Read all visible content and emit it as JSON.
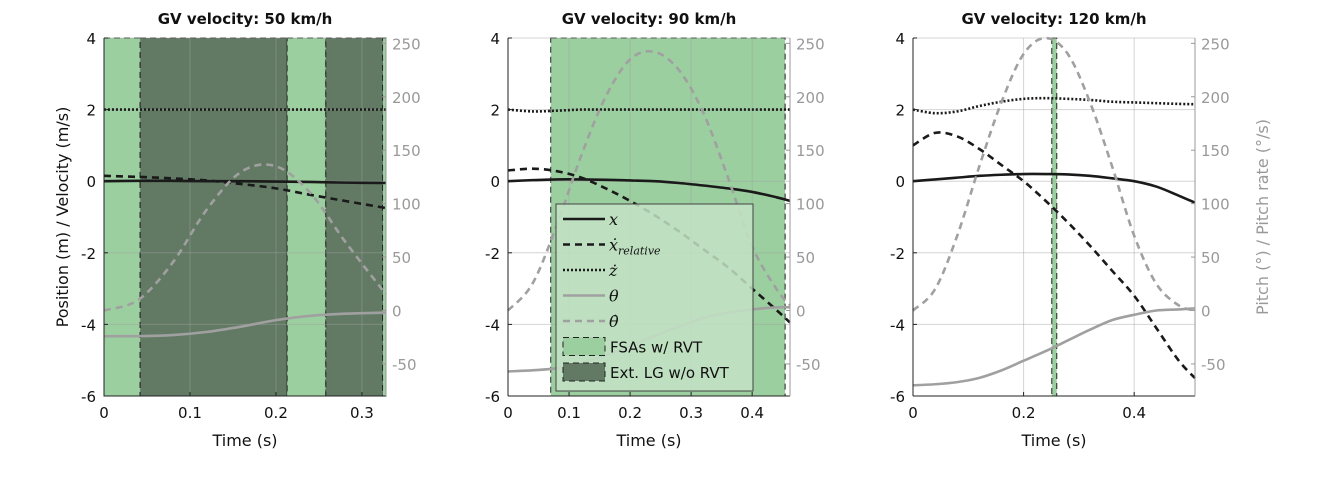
{
  "colors": {
    "fsa": "#9ccf9f",
    "extlg": "#627a64",
    "legend_bg": "#c4e2c5",
    "black": "#1a1a1a",
    "gray": "#a0a0a0",
    "grid": "#d8d8d8"
  },
  "legend": {
    "items": [
      {
        "label": "x",
        "sub": "",
        "style": "solid",
        "color": "black"
      },
      {
        "label": "ẋ",
        "sub": "relative",
        "style": "dash",
        "color": "black"
      },
      {
        "label": "ż",
        "sub": "",
        "style": "dot",
        "color": "black"
      },
      {
        "label": "θ",
        "sub": "",
        "style": "solid",
        "color": "gray"
      },
      {
        "label": "θ̇",
        "sub": "",
        "style": "dash",
        "color": "gray"
      },
      {
        "label": "FSAs w/ RVT",
        "type": "patch",
        "color": "fsa"
      },
      {
        "label": "Ext. LG w/o RVT",
        "type": "patch",
        "color": "extlg"
      }
    ]
  },
  "chart_data": [
    {
      "type": "line",
      "title": "GV velocity: 50 km/h",
      "xlabel": "Time (s)",
      "ylabel": "Position (m) / Velocity (m/s)",
      "ylabel_right": "",
      "xlim": [
        0,
        0.328
      ],
      "ylim": [
        -6,
        4
      ],
      "ylim_right": [
        -80,
        255
      ],
      "xticks": [
        "0",
        "0.1",
        "0.2",
        "0.3"
      ],
      "xtick_values": [
        0,
        0.1,
        0.2,
        0.3
      ],
      "yticks": [
        "4",
        "2",
        "0",
        "-2",
        "-4",
        "-6"
      ],
      "ytick_values": [
        4,
        2,
        0,
        -2,
        -4,
        -6
      ],
      "yticks_right": [
        "250",
        "200",
        "150",
        "100",
        "50",
        "0",
        "-50"
      ],
      "ytick_right_values": [
        250,
        200,
        150,
        100,
        50,
        0,
        -50
      ],
      "grid": true,
      "regions": [
        {
          "kind": "fsa",
          "from": 0,
          "to": 0.042
        },
        {
          "kind": "extlg",
          "from": 0.042,
          "to": 0.213
        },
        {
          "kind": "fsa",
          "from": 0.213,
          "to": 0.258
        },
        {
          "kind": "extlg",
          "from": 0.258,
          "to": 0.324
        },
        {
          "kind": "fsa",
          "from": 0.324,
          "to": 0.328
        }
      ],
      "t": [
        0,
        0.04,
        0.08,
        0.12,
        0.16,
        0.2,
        0.24,
        0.28,
        0.328
      ],
      "series": [
        {
          "name": "x",
          "axis": "left",
          "values": [
            0,
            0.01,
            0.01,
            0.0,
            0,
            -0.01,
            -0.02,
            -0.04,
            -0.05
          ]
        },
        {
          "name": "ẋrelative",
          "axis": "left",
          "values": [
            0.15,
            0.12,
            0.08,
            0.02,
            -0.08,
            -0.2,
            -0.38,
            -0.55,
            -0.75
          ]
        },
        {
          "name": "ż",
          "axis": "left",
          "values": [
            2,
            2,
            2,
            2,
            2,
            2,
            2,
            2,
            2
          ]
        },
        {
          "name": "θ",
          "axis": "right",
          "values": [
            -24,
            -24,
            -23,
            -20,
            -15,
            -9,
            -5,
            -3,
            -2
          ]
        },
        {
          "name": "θ̇",
          "axis": "right",
          "values": [
            0,
            10,
            45,
            95,
            130,
            135,
            110,
            65,
            15
          ]
        }
      ]
    },
    {
      "type": "line",
      "title": "GV velocity: 90 km/h",
      "xlabel": "Time (s)",
      "ylabel": "",
      "ylabel_right": "",
      "xlim": [
        0,
        0.462
      ],
      "ylim": [
        -6,
        4
      ],
      "ylim_right": [
        -80,
        255
      ],
      "xticks": [
        "0",
        "0.1",
        "0.2",
        "0.3",
        "0.4"
      ],
      "xtick_values": [
        0,
        0.1,
        0.2,
        0.3,
        0.4
      ],
      "yticks": [
        "4",
        "2",
        "0",
        "-2",
        "-4",
        "-6"
      ],
      "ytick_values": [
        4,
        2,
        0,
        -2,
        -4,
        -6
      ],
      "yticks_right": [
        "250",
        "200",
        "150",
        "100",
        "50",
        "0",
        "-50"
      ],
      "ytick_right_values": [
        250,
        200,
        150,
        100,
        50,
        0,
        -50
      ],
      "grid": true,
      "regions": [
        {
          "kind": "fsa",
          "from": 0.07,
          "to": 0.454
        }
      ],
      "t": [
        0,
        0.04,
        0.08,
        0.12,
        0.16,
        0.2,
        0.24,
        0.28,
        0.32,
        0.36,
        0.4,
        0.44,
        0.462
      ],
      "series": [
        {
          "name": "x",
          "axis": "left",
          "values": [
            0,
            0.03,
            0.05,
            0.05,
            0.04,
            0.02,
            0,
            -0.05,
            -0.12,
            -0.2,
            -0.3,
            -0.45,
            -0.55
          ]
        },
        {
          "name": "ẋrelative",
          "axis": "left",
          "values": [
            0.3,
            0.35,
            0.28,
            0.1,
            -0.2,
            -0.55,
            -0.95,
            -1.4,
            -1.9,
            -2.4,
            -3.0,
            -3.6,
            -3.95
          ]
        },
        {
          "name": "ż",
          "axis": "left",
          "values": [
            2.0,
            1.95,
            1.97,
            2.0,
            2.0,
            2.0,
            2.0,
            2.0,
            2.0,
            2.0,
            2.0,
            2.0,
            2.0
          ]
        },
        {
          "name": "θ",
          "axis": "right",
          "values": [
            -57,
            -56,
            -54,
            -49,
            -42,
            -33,
            -24,
            -15,
            -7,
            -2,
            1,
            3,
            3
          ]
        },
        {
          "name": "θ̇",
          "axis": "right",
          "values": [
            0,
            25,
            80,
            145,
            200,
            235,
            242,
            225,
            185,
            125,
            60,
            20,
            5
          ]
        }
      ]
    },
    {
      "type": "line",
      "title": "GV velocity: 120 km/h",
      "xlabel": "Time (s)",
      "ylabel": "",
      "ylabel_right": "Pitch (°) / Pitch rate (°/s)",
      "xlim": [
        0,
        0.51
      ],
      "ylim": [
        -6,
        4
      ],
      "ylim_right": [
        -80,
        255
      ],
      "xticks": [
        "0",
        "0.2",
        "0.4"
      ],
      "xtick_values": [
        0,
        0.2,
        0.4
      ],
      "yticks": [
        "4",
        "2",
        "0",
        "-2",
        "-4",
        "-6"
      ],
      "ytick_values": [
        4,
        2,
        0,
        -2,
        -4,
        -6
      ],
      "yticks_right": [
        "250",
        "200",
        "150",
        "100",
        "50",
        "0",
        "-50"
      ],
      "ytick_right_values": [
        250,
        200,
        150,
        100,
        50,
        0,
        -50
      ],
      "grid": true,
      "regions": [
        {
          "kind": "fsa",
          "from": 0.251,
          "to": 0.26
        }
      ],
      "t": [
        0,
        0.04,
        0.08,
        0.12,
        0.16,
        0.2,
        0.24,
        0.28,
        0.32,
        0.36,
        0.4,
        0.44,
        0.48,
        0.51
      ],
      "series": [
        {
          "name": "x",
          "axis": "left",
          "values": [
            0,
            0.05,
            0.1,
            0.15,
            0.18,
            0.2,
            0.2,
            0.19,
            0.15,
            0.08,
            0,
            -0.15,
            -0.4,
            -0.6
          ]
        },
        {
          "name": "ẋrelative",
          "axis": "left",
          "values": [
            1.0,
            1.35,
            1.25,
            0.9,
            0.45,
            0.0,
            -0.55,
            -1.15,
            -1.8,
            -2.5,
            -3.2,
            -4.1,
            -5.0,
            -5.5
          ]
        },
        {
          "name": "ż",
          "axis": "left",
          "values": [
            2.0,
            1.9,
            1.95,
            2.1,
            2.22,
            2.3,
            2.32,
            2.3,
            2.27,
            2.22,
            2.2,
            2.18,
            2.16,
            2.15
          ]
        },
        {
          "name": "θ",
          "axis": "right",
          "values": [
            -70,
            -69,
            -67,
            -63,
            -56,
            -47,
            -38,
            -28,
            -18,
            -9,
            -4,
            0,
            1,
            2
          ]
        },
        {
          "name": "θ̇",
          "axis": "right",
          "values": [
            0,
            20,
            70,
            135,
            195,
            240,
            255,
            240,
            195,
            135,
            70,
            25,
            5,
            0
          ]
        }
      ]
    }
  ]
}
